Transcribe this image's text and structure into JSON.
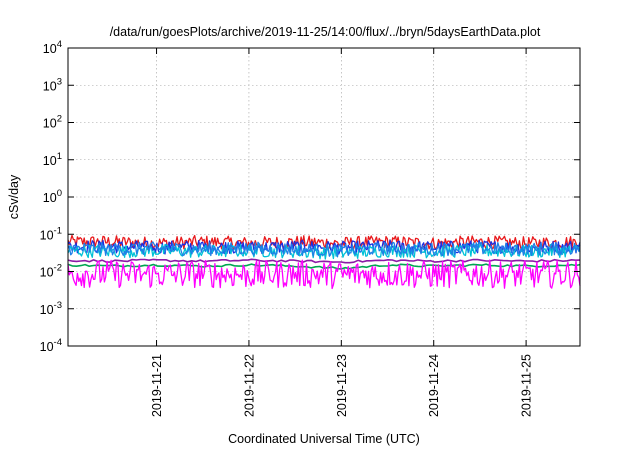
{
  "chart_data": {
    "type": "line",
    "title": "/data/run/goesPlots/archive/2019-11-25/14:00/flux/../bryn/5daysEarthData.plot",
    "xlabel": "Coordinated Universal Time (UTC)",
    "ylabel": "cSv/day",
    "yscale": "log",
    "ylim": [
      0.0001,
      10000
    ],
    "xlim": [
      "2019-11-20T01:00",
      "2019-11-25T14:00"
    ],
    "x_tick_labels": [
      "2019-11-21",
      "2019-11-22",
      "2019-11-23",
      "2019-11-24",
      "2019-11-25"
    ],
    "y_ticks": [
      {
        "value": 0.0001,
        "base": "10",
        "exp": "-4"
      },
      {
        "value": 0.001,
        "base": "10",
        "exp": "-3"
      },
      {
        "value": 0.01,
        "base": "10",
        "exp": "-2"
      },
      {
        "value": 0.1,
        "base": "10",
        "exp": "-1"
      },
      {
        "value": 1,
        "base": "10",
        "exp": "0"
      },
      {
        "value": 10,
        "base": "10",
        "exp": "1"
      },
      {
        "value": 100,
        "base": "10",
        "exp": "2"
      },
      {
        "value": 1000,
        "base": "10",
        "exp": "3"
      },
      {
        "value": 10000,
        "base": "10",
        "exp": "4"
      }
    ],
    "grid": true,
    "legend": "none",
    "series": [
      {
        "color": "#e8191c",
        "noisy": true,
        "points": [
          [
            "2019-11-20T01:00",
            0.06
          ],
          [
            "2019-11-20T12:00",
            0.06
          ],
          [
            "2019-11-21T00:00",
            0.055
          ],
          [
            "2019-11-21T12:00",
            0.06
          ],
          [
            "2019-11-22T00:00",
            0.055
          ],
          [
            "2019-11-22T12:00",
            0.06
          ],
          [
            "2019-11-23T00:00",
            0.055
          ],
          [
            "2019-11-23T12:00",
            0.06
          ],
          [
            "2019-11-24T00:00",
            0.055
          ],
          [
            "2019-11-24T12:00",
            0.06
          ],
          [
            "2019-11-25T00:00",
            0.055
          ],
          [
            "2019-11-25T14:00",
            0.06
          ]
        ]
      },
      {
        "color": "#1b2ee0",
        "noisy": true,
        "points": [
          [
            "2019-11-20T01:00",
            0.045
          ],
          [
            "2019-11-20T12:00",
            0.045
          ],
          [
            "2019-11-21T00:00",
            0.042
          ],
          [
            "2019-11-21T12:00",
            0.045
          ],
          [
            "2019-11-22T00:00",
            0.042
          ],
          [
            "2019-11-22T12:00",
            0.045
          ],
          [
            "2019-11-23T00:00",
            0.042
          ],
          [
            "2019-11-23T12:00",
            0.045
          ],
          [
            "2019-11-24T00:00",
            0.042
          ],
          [
            "2019-11-24T12:00",
            0.045
          ],
          [
            "2019-11-25T00:00",
            0.042
          ],
          [
            "2019-11-25T14:00",
            0.045
          ]
        ]
      },
      {
        "color": "#00a651",
        "noisy": false,
        "points": [
          [
            "2019-11-20T01:00",
            0.015
          ],
          [
            "2019-11-20T12:00",
            0.014
          ],
          [
            "2019-11-21T00:00",
            0.015
          ],
          [
            "2019-11-21T12:00",
            0.014
          ],
          [
            "2019-11-22T00:00",
            0.015
          ],
          [
            "2019-11-22T12:00",
            0.014
          ],
          [
            "2019-11-23T00:00",
            0.012
          ],
          [
            "2019-11-23T12:00",
            0.015
          ],
          [
            "2019-11-24T00:00",
            0.014
          ],
          [
            "2019-11-24T12:00",
            0.015
          ],
          [
            "2019-11-25T00:00",
            0.014
          ],
          [
            "2019-11-25T14:00",
            0.015
          ]
        ]
      },
      {
        "color": "#8c1aa6",
        "noisy": false,
        "points": [
          [
            "2019-11-20T01:00",
            0.02
          ],
          [
            "2019-11-20T12:00",
            0.019
          ],
          [
            "2019-11-21T00:00",
            0.02
          ],
          [
            "2019-11-21T12:00",
            0.019
          ],
          [
            "2019-11-22T00:00",
            0.02
          ],
          [
            "2019-11-22T12:00",
            0.019
          ],
          [
            "2019-11-23T00:00",
            0.018
          ],
          [
            "2019-11-23T12:00",
            0.02
          ],
          [
            "2019-11-24T00:00",
            0.019
          ],
          [
            "2019-11-24T12:00",
            0.02
          ],
          [
            "2019-11-25T00:00",
            0.019
          ],
          [
            "2019-11-25T14:00",
            0.02
          ]
        ]
      },
      {
        "color": "#00c2d6",
        "noisy": true,
        "points": [
          [
            "2019-11-20T01:00",
            0.035
          ],
          [
            "2019-11-20T12:00",
            0.033
          ],
          [
            "2019-11-21T00:00",
            0.035
          ],
          [
            "2019-11-21T12:00",
            0.033
          ],
          [
            "2019-11-22T00:00",
            0.035
          ],
          [
            "2019-11-22T12:00",
            0.033
          ],
          [
            "2019-11-23T00:00",
            0.03
          ],
          [
            "2019-11-23T12:00",
            0.035
          ],
          [
            "2019-11-24T00:00",
            0.033
          ],
          [
            "2019-11-24T12:00",
            0.035
          ],
          [
            "2019-11-25T00:00",
            0.033
          ],
          [
            "2019-11-25T14:00",
            0.035
          ]
        ]
      },
      {
        "color": "#1f7fe6",
        "noisy": true,
        "points": [
          [
            "2019-11-20T01:00",
            0.04
          ],
          [
            "2019-11-20T12:00",
            0.038
          ],
          [
            "2019-11-21T00:00",
            0.04
          ],
          [
            "2019-11-21T12:00",
            0.038
          ],
          [
            "2019-11-22T00:00",
            0.04
          ],
          [
            "2019-11-22T12:00",
            0.038
          ],
          [
            "2019-11-23T00:00",
            0.035
          ],
          [
            "2019-11-23T12:00",
            0.04
          ],
          [
            "2019-11-24T00:00",
            0.038
          ],
          [
            "2019-11-24T12:00",
            0.04
          ],
          [
            "2019-11-25T00:00",
            0.038
          ],
          [
            "2019-11-25T14:00",
            0.04
          ]
        ]
      },
      {
        "color": "#ff00ff",
        "noisy": true,
        "points": [
          [
            "2019-11-20T01:00",
            0.008
          ],
          [
            "2019-11-20T12:00",
            0.008
          ],
          [
            "2019-11-21T00:00",
            0.0075
          ],
          [
            "2019-11-21T12:00",
            0.008
          ],
          [
            "2019-11-22T00:00",
            0.0075
          ],
          [
            "2019-11-22T12:00",
            0.008
          ],
          [
            "2019-11-23T00:00",
            0.0075
          ],
          [
            "2019-11-23T12:00",
            0.008
          ],
          [
            "2019-11-24T00:00",
            0.0075
          ],
          [
            "2019-11-24T12:00",
            0.008
          ],
          [
            "2019-11-25T00:00",
            0.0075
          ],
          [
            "2019-11-25T14:00",
            0.008
          ]
        ]
      }
    ]
  }
}
